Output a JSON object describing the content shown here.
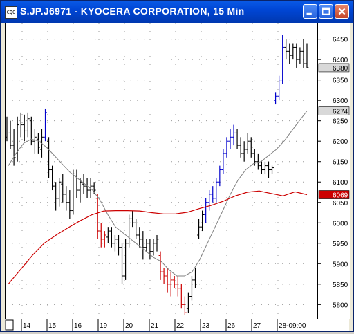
{
  "window": {
    "icon_text": "CQG",
    "title": "S.JP.J6971 - KYOCERA CORPORATION, 15 Min",
    "buttons": {
      "minimize": "minimize",
      "maximize": "maximize",
      "close": "close"
    }
  },
  "chart_data": {
    "type": "bar",
    "subtype": "ohlc-intraday",
    "title": "S.JP.J6971 - KYOCERA CORPORATION, 15 Min",
    "ylim": [
      5765,
      6490
    ],
    "yticks": [
      5800,
      5850,
      5900,
      5950,
      6000,
      6050,
      6100,
      6150,
      6200,
      6250,
      6300,
      6350,
      6400,
      6450
    ],
    "xlabels": [
      "14",
      "15",
      "16",
      "19",
      "20",
      "21",
      "22",
      "23",
      "26",
      "27",
      "28-09:00"
    ],
    "grid": true,
    "price_labels": [
      {
        "value": 6380,
        "text": "6380",
        "color": "#000000"
      },
      {
        "value": 6274,
        "text": "6274",
        "color": "#000000"
      },
      {
        "value": 6069,
        "text": "6069",
        "color": "#cc0000"
      }
    ],
    "bar_colors": {
      "neutral": "#000000",
      "up": "#0000cc",
      "down": "#cc0000"
    },
    "bars": [
      [
        6210,
        6260,
        6200,
        6230,
        "n"
      ],
      [
        6220,
        6250,
        6180,
        6190,
        "n"
      ],
      [
        6190,
        6230,
        6140,
        6160,
        "n"
      ],
      [
        6170,
        6260,
        6150,
        6240,
        "n"
      ],
      [
        6235,
        6270,
        6210,
        6240,
        "n"
      ],
      [
        6240,
        6265,
        6200,
        6225,
        "n"
      ],
      [
        6225,
        6270,
        6210,
        6255,
        "n"
      ],
      [
        6250,
        6260,
        6190,
        6200,
        "n"
      ],
      [
        6200,
        6230,
        6170,
        6210,
        "n"
      ],
      [
        6205,
        6220,
        6170,
        6185,
        "n"
      ],
      [
        6180,
        6230,
        6160,
        6210,
        "n"
      ],
      [
        6210,
        6280,
        6200,
        6270,
        "u"
      ],
      [
        6200,
        6210,
        6110,
        6130,
        "n"
      ],
      [
        6130,
        6140,
        6080,
        6090,
        "n"
      ],
      [
        6090,
        6100,
        6030,
        6060,
        "n"
      ],
      [
        6060,
        6110,
        6040,
        6100,
        "n"
      ],
      [
        6095,
        6120,
        6050,
        6070,
        "n"
      ],
      [
        6070,
        6090,
        6030,
        6050,
        "n"
      ],
      [
        6050,
        6080,
        6010,
        6030,
        "n"
      ],
      [
        6030,
        6130,
        6020,
        6120,
        "n"
      ],
      [
        6115,
        6130,
        6060,
        6080,
        "n"
      ],
      [
        6080,
        6110,
        6050,
        6100,
        "n"
      ],
      [
        6095,
        6120,
        6070,
        6090,
        "n"
      ],
      [
        6090,
        6110,
        6060,
        6080,
        "n"
      ],
      [
        6080,
        6110,
        6060,
        6090,
        "n"
      ],
      [
        6090,
        6100,
        6070,
        6080,
        "n"
      ],
      [
        6060,
        6070,
        5960,
        5980,
        "d"
      ],
      [
        5980,
        6000,
        5940,
        5960,
        "d"
      ],
      [
        5960,
        5980,
        5940,
        5970,
        "d"
      ],
      [
        5965,
        5990,
        5950,
        5980,
        "n"
      ],
      [
        5980,
        5990,
        5940,
        5950,
        "n"
      ],
      [
        5950,
        5970,
        5930,
        5960,
        "n"
      ],
      [
        5960,
        5970,
        5920,
        5940,
        "n"
      ],
      [
        5940,
        5950,
        5850,
        5870,
        "n"
      ],
      [
        5870,
        5960,
        5860,
        5950,
        "n"
      ],
      [
        5950,
        6020,
        5940,
        6010,
        "n"
      ],
      [
        6010,
        6030,
        5990,
        6000,
        "n"
      ],
      [
        6000,
        6010,
        5960,
        5970,
        "n"
      ],
      [
        5970,
        5990,
        5940,
        5960,
        "n"
      ],
      [
        5960,
        5980,
        5910,
        5940,
        "n"
      ],
      [
        5940,
        5960,
        5930,
        5950,
        "n"
      ],
      [
        5950,
        5960,
        5910,
        5930,
        "n"
      ],
      [
        5930,
        5960,
        5920,
        5950,
        "n"
      ],
      [
        5950,
        5970,
        5930,
        5960,
        "n"
      ],
      [
        5920,
        5930,
        5860,
        5880,
        "d"
      ],
      [
        5880,
        5890,
        5850,
        5870,
        "d"
      ],
      [
        5870,
        5890,
        5830,
        5850,
        "d"
      ],
      [
        5850,
        5880,
        5820,
        5860,
        "d"
      ],
      [
        5860,
        5870,
        5840,
        5850,
        "d"
      ],
      [
        5850,
        5870,
        5820,
        5840,
        "d"
      ],
      [
        5840,
        5850,
        5790,
        5800,
        "d"
      ],
      [
        5800,
        5820,
        5775,
        5780,
        "d"
      ],
      [
        5790,
        5830,
        5780,
        5820,
        "n"
      ],
      [
        5820,
        5870,
        5810,
        5860,
        "n"
      ],
      [
        5860,
        5890,
        5840,
        5850,
        "n"
      ],
      [
        5970,
        6010,
        5960,
        5990,
        "n"
      ],
      [
        5990,
        6030,
        5980,
        6020,
        "n"
      ],
      [
        6020,
        6060,
        6000,
        6050,
        "u"
      ],
      [
        6050,
        6080,
        6030,
        6070,
        "u"
      ],
      [
        6070,
        6090,
        6050,
        6060,
        "u"
      ],
      [
        6060,
        6110,
        6050,
        6100,
        "u"
      ],
      [
        6100,
        6140,
        6090,
        6130,
        "u"
      ],
      [
        6130,
        6180,
        6120,
        6170,
        "u"
      ],
      [
        6170,
        6210,
        6160,
        6200,
        "u"
      ],
      [
        6200,
        6230,
        6180,
        6210,
        "u"
      ],
      [
        6210,
        6240,
        6190,
        6220,
        "u"
      ],
      [
        6220,
        6230,
        6180,
        6190,
        "n"
      ],
      [
        6190,
        6210,
        6160,
        6170,
        "n"
      ],
      [
        6170,
        6200,
        6150,
        6180,
        "n"
      ],
      [
        6180,
        6220,
        6170,
        6200,
        "n"
      ],
      [
        6200,
        6210,
        6160,
        6170,
        "n"
      ],
      [
        6170,
        6180,
        6140,
        6150,
        "n"
      ],
      [
        6150,
        6170,
        6130,
        6140,
        "n"
      ],
      [
        6140,
        6150,
        6120,
        6130,
        "n"
      ],
      [
        6130,
        6150,
        6120,
        6140,
        "n"
      ],
      [
        6140,
        6150,
        6110,
        6130,
        "n"
      ],
      [
        6130,
        6140,
        6120,
        6135,
        "n"
      ],
      [
        6300,
        6320,
        6290,
        6310,
        "u"
      ],
      [
        6310,
        6360,
        6300,
        6350,
        "u"
      ],
      [
        6350,
        6460,
        6340,
        6430,
        "u"
      ],
      [
        6430,
        6450,
        6400,
        6420,
        "n"
      ],
      [
        6420,
        6440,
        6390,
        6410,
        "n"
      ],
      [
        6410,
        6440,
        6400,
        6430,
        "n"
      ],
      [
        6430,
        6440,
        6380,
        6400,
        "n"
      ],
      [
        6400,
        6430,
        6390,
        6420,
        "n"
      ],
      [
        6420,
        6450,
        6380,
        6390,
        "n"
      ],
      [
        6390,
        6440,
        6380,
        6380,
        "n"
      ]
    ],
    "series": [
      {
        "role": "short_ma",
        "color": "#808080",
        "values": [
          6140,
          6170,
          6195,
          6205,
          6200,
          6185,
          6165,
          6145,
          6125,
          6110,
          6095,
          6080,
          6055,
          6020,
          5990,
          5975,
          5960,
          5945,
          5930,
          5915,
          5905,
          5885,
          5870,
          5870,
          5880,
          5910,
          5950,
          5990,
          6030,
          6070,
          6105,
          6130,
          6145,
          6150,
          6165,
          6180,
          6200,
          6225,
          6250,
          6274
        ]
      },
      {
        "role": "long_ma",
        "color": "#cc0000",
        "values": [
          5850,
          5885,
          5920,
          5950,
          5970,
          5988,
          6005,
          6020,
          6029,
          6030,
          6030,
          6029,
          6025,
          6022,
          6022,
          6026,
          6035,
          6043,
          6053,
          6066,
          6075,
          6078,
          6072,
          6066,
          6076,
          6069
        ]
      }
    ]
  }
}
